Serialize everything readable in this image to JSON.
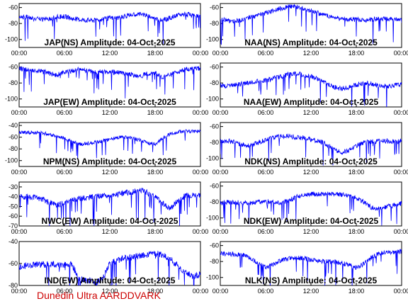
{
  "chart_data": [
    {
      "type": "line",
      "title": "JAP(NS) Amplitude: 04-Oct-2025",
      "ylim": [
        -110,
        -55
      ],
      "yticks": [
        "-60",
        "-80",
        "-100"
      ],
      "ytick_values": [
        -60,
        -80,
        -100
      ],
      "x_ticks": [
        "00:00",
        "06:00",
        "12:00",
        "18:00",
        "00:00"
      ],
      "x_hours": [
        0,
        6,
        12,
        18,
        24
      ],
      "color": "#0000ff",
      "series": [
        {
          "x": [
            0,
            1,
            2,
            3,
            4,
            5,
            6,
            7,
            8,
            9,
            10,
            11,
            12,
            13,
            14,
            15,
            16,
            17,
            18,
            19,
            20,
            21,
            22,
            23,
            24
          ],
          "values": [
            -71,
            -72,
            -74,
            -75,
            -74,
            -72,
            -71,
            -74,
            -75,
            -76,
            -76,
            -75,
            -73,
            -73,
            -71,
            -69,
            -68,
            -70,
            -74,
            -76,
            -73,
            -70,
            -68,
            -70,
            -71
          ]
        }
      ]
    },
    {
      "type": "line",
      "title": "NAA(NS) Amplitude: 04-Oct-2025",
      "ylim": [
        -110,
        -55
      ],
      "yticks": [
        "-60",
        "-80",
        "-100"
      ],
      "ytick_values": [
        -60,
        -80,
        -100
      ],
      "x_ticks": [
        "00:00",
        "06:00",
        "12:00",
        "18:00",
        "00:00"
      ],
      "x_hours": [
        0,
        6,
        12,
        18,
        24
      ],
      "color": "#0000ff",
      "series": [
        {
          "x": [
            0,
            1,
            2,
            3,
            4,
            5,
            6,
            7,
            8,
            9,
            10,
            11,
            12,
            13,
            14,
            15,
            16,
            17,
            18,
            19,
            20,
            21,
            22,
            23,
            24
          ],
          "values": [
            -75,
            -76,
            -77,
            -75,
            -72,
            -70,
            -67,
            -64,
            -61,
            -59,
            -59,
            -61,
            -64,
            -67,
            -70,
            -72,
            -74,
            -75,
            -75,
            -76,
            -75,
            -74,
            -74,
            -75,
            -76
          ]
        }
      ]
    },
    {
      "type": "line",
      "title": "JAP(EW) Amplitude: 04-Oct-2025",
      "ylim": [
        -110,
        -55
      ],
      "yticks": [
        "-60",
        "-80",
        "-100"
      ],
      "ytick_values": [
        -60,
        -80,
        -100
      ],
      "x_ticks": [
        "00:00",
        "06:00",
        "12:00",
        "18:00",
        "00:00"
      ],
      "x_hours": [
        0,
        6,
        12,
        18,
        24
      ],
      "color": "#0000ff",
      "series": [
        {
          "x": [
            0,
            1,
            2,
            3,
            4,
            5,
            6,
            7,
            8,
            9,
            10,
            11,
            12,
            13,
            14,
            15,
            16,
            17,
            18,
            19,
            20,
            21,
            22,
            23,
            24
          ],
          "values": [
            -62,
            -63,
            -64,
            -65,
            -68,
            -70,
            -66,
            -65,
            -63,
            -65,
            -66,
            -66,
            -66,
            -67,
            -68,
            -70,
            -72,
            -68,
            -67,
            -73,
            -70,
            -66,
            -63,
            -62,
            -62
          ]
        }
      ]
    },
    {
      "type": "line",
      "title": "NAA(EW) Amplitude: 04-Oct-2025",
      "ylim": [
        -110,
        -55
      ],
      "yticks": [
        "-60",
        "-80",
        "-100"
      ],
      "ytick_values": [
        -60,
        -80,
        -100
      ],
      "x_ticks": [
        "00:00",
        "06:00",
        "12:00",
        "18:00",
        "00:00"
      ],
      "x_hours": [
        0,
        6,
        12,
        18,
        24
      ],
      "color": "#0000ff",
      "series": [
        {
          "x": [
            0,
            1,
            2,
            3,
            4,
            5,
            6,
            7,
            8,
            9,
            10,
            11,
            12,
            13,
            14,
            15,
            16,
            17,
            18,
            19,
            20,
            21,
            22,
            23,
            24
          ],
          "values": [
            -83,
            -84,
            -82,
            -81,
            -79,
            -78,
            -77,
            -74,
            -72,
            -69,
            -68,
            -70,
            -72,
            -75,
            -80,
            -85,
            -87,
            -86,
            -82,
            -80,
            -81,
            -83,
            -84,
            -83,
            -82
          ]
        }
      ]
    },
    {
      "type": "line",
      "title": "NPM(NS) Amplitude: 04-Oct-2025",
      "ylim": [
        -110,
        -35
      ],
      "yticks": [
        "-40",
        "-60",
        "-80",
        "-100"
      ],
      "ytick_values": [
        -40,
        -60,
        -80,
        -100
      ],
      "x_ticks": [
        "00:00",
        "06:00",
        "12:00",
        "18:00",
        "00:00"
      ],
      "x_hours": [
        0,
        6,
        12,
        18,
        24
      ],
      "color": "#0000ff",
      "series": [
        {
          "x": [
            0,
            1,
            2,
            3,
            4,
            5,
            6,
            7,
            8,
            9,
            10,
            11,
            12,
            13,
            14,
            15,
            16,
            17,
            18,
            19,
            20,
            21,
            22,
            23,
            24
          ],
          "values": [
            -52,
            -52,
            -52,
            -53,
            -55,
            -58,
            -62,
            -68,
            -72,
            -71,
            -69,
            -67,
            -63,
            -61,
            -60,
            -62,
            -65,
            -70,
            -72,
            -62,
            -54,
            -51,
            -50,
            -50,
            -50
          ]
        }
      ]
    },
    {
      "type": "line",
      "title": "NDK(NS) Amplitude: 04-Oct-2025",
      "ylim": [
        -110,
        -55
      ],
      "yticks": [
        "-60",
        "-80",
        "-100"
      ],
      "ytick_values": [
        -60,
        -80,
        -100
      ],
      "x_ticks": [
        "00:00",
        "06:00",
        "12:00",
        "18:00",
        "00:00"
      ],
      "x_hours": [
        0,
        6,
        12,
        18,
        24
      ],
      "color": "#0000ff",
      "series": [
        {
          "x": [
            0,
            1,
            2,
            3,
            4,
            5,
            6,
            7,
            8,
            9,
            10,
            11,
            12,
            13,
            14,
            15,
            16,
            17,
            18,
            19,
            20,
            21,
            22,
            23,
            24
          ],
          "values": [
            -78,
            -78,
            -80,
            -83,
            -84,
            -80,
            -77,
            -74,
            -72,
            -72,
            -74,
            -74,
            -76,
            -78,
            -82,
            -88,
            -93,
            -90,
            -84,
            -80,
            -79,
            -78,
            -78,
            -79,
            -78
          ]
        }
      ]
    },
    {
      "type": "line",
      "title": "NWC(EW) Amplitude: 04-Oct-2025",
      "ylim": [
        -70,
        -25
      ],
      "yticks": [
        "-30",
        "-40",
        "-50",
        "-60",
        "-70"
      ],
      "ytick_values": [
        -30,
        -40,
        -50,
        -60,
        -70
      ],
      "x_ticks": [
        "00:00",
        "06:00",
        "12:00",
        "18:00",
        "00:00"
      ],
      "x_hours": [
        0,
        6,
        12,
        18,
        24
      ],
      "color": "#0000ff",
      "series": [
        {
          "x": [
            0,
            1,
            2,
            3,
            4,
            5,
            6,
            7,
            8,
            9,
            10,
            11,
            12,
            13,
            14,
            15,
            16,
            17,
            18,
            19,
            20,
            21,
            22,
            23,
            24
          ],
          "values": [
            -40,
            -40,
            -41,
            -42,
            -46,
            -49,
            -46,
            -43,
            -42,
            -41,
            -40,
            -39,
            -39,
            -38,
            -36,
            -35,
            -33,
            -36,
            -40,
            -47,
            -52,
            -44,
            -39,
            -38,
            -38
          ]
        }
      ]
    },
    {
      "type": "line",
      "title": "NDK(EW) Amplitude: 04-Oct-2025",
      "ylim": [
        -110,
        -55
      ],
      "yticks": [
        "-60",
        "-80",
        "-100"
      ],
      "ytick_values": [
        -60,
        -80,
        -100
      ],
      "x_ticks": [
        "00:00",
        "06:00",
        "12:00",
        "18:00",
        "00:00"
      ],
      "x_hours": [
        0,
        6,
        12,
        18,
        24
      ],
      "color": "#0000ff",
      "series": [
        {
          "x": [
            0,
            1,
            2,
            3,
            4,
            5,
            6,
            7,
            8,
            9,
            10,
            11,
            12,
            13,
            14,
            15,
            16,
            17,
            18,
            19,
            20,
            21,
            22,
            23,
            24
          ],
          "values": [
            -80,
            -80,
            -81,
            -80,
            -81,
            -80,
            -79,
            -80,
            -82,
            -78,
            -74,
            -71,
            -70,
            -70,
            -70,
            -70,
            -71,
            -72,
            -75,
            -80,
            -87,
            -88,
            -86,
            -84,
            -82
          ]
        }
      ]
    },
    {
      "type": "line",
      "title": "IND(EW) Amplitude: 04-Oct-2025",
      "ylim": [
        -80,
        -40
      ],
      "yticks": [
        "-40",
        "-60",
        "-80"
      ],
      "ytick_values": [
        -40,
        -60,
        -80
      ],
      "x_ticks": [
        "00:00",
        "06:00",
        "12:00",
        "18:00",
        "00:00"
      ],
      "x_hours": [
        0,
        6,
        12,
        18,
        24
      ],
      "color": "#0000ff",
      "series": [
        {
          "x": [
            0,
            1,
            2,
            3,
            4,
            5,
            6,
            7,
            8,
            9,
            10,
            11,
            12,
            13,
            14,
            15,
            16,
            17,
            18,
            19,
            20,
            21,
            22,
            23,
            24
          ],
          "values": [
            -64,
            -62,
            -61,
            -61,
            -61,
            -61,
            -61,
            -61,
            -75,
            -75,
            -77,
            -75,
            -60,
            -57,
            -55,
            -54,
            -53,
            -52,
            -51,
            -52,
            -56,
            -62,
            -68,
            -72,
            -70
          ]
        }
      ]
    },
    {
      "type": "line",
      "title": "NLK(NS) Amplitude: 04-Oct-2025",
      "ylim": [
        -110,
        -55
      ],
      "yticks": [
        "-60",
        "-80",
        "-100"
      ],
      "ytick_values": [
        -60,
        -80,
        -100
      ],
      "x_ticks": [
        "00:00",
        "06:00",
        "12:00",
        "18:00",
        "00:00"
      ],
      "x_hours": [
        0,
        6,
        12,
        18,
        24
      ],
      "color": "#0000ff",
      "series": [
        {
          "x": [
            0,
            1,
            2,
            3,
            4,
            5,
            6,
            7,
            8,
            9,
            10,
            11,
            12,
            13,
            14,
            15,
            16,
            17,
            18,
            19,
            20,
            21,
            22,
            23,
            24
          ],
          "values": [
            -70,
            -70,
            -71,
            -72,
            -76,
            -82,
            -87,
            -84,
            -79,
            -76,
            -75,
            -76,
            -78,
            -79,
            -80,
            -80,
            -82,
            -84,
            -88,
            -83,
            -75,
            -70,
            -68,
            -68,
            -68
          ]
        }
      ]
    }
  ],
  "footer": {
    "credit": "Dunedin Ultra AARDDVARK"
  }
}
